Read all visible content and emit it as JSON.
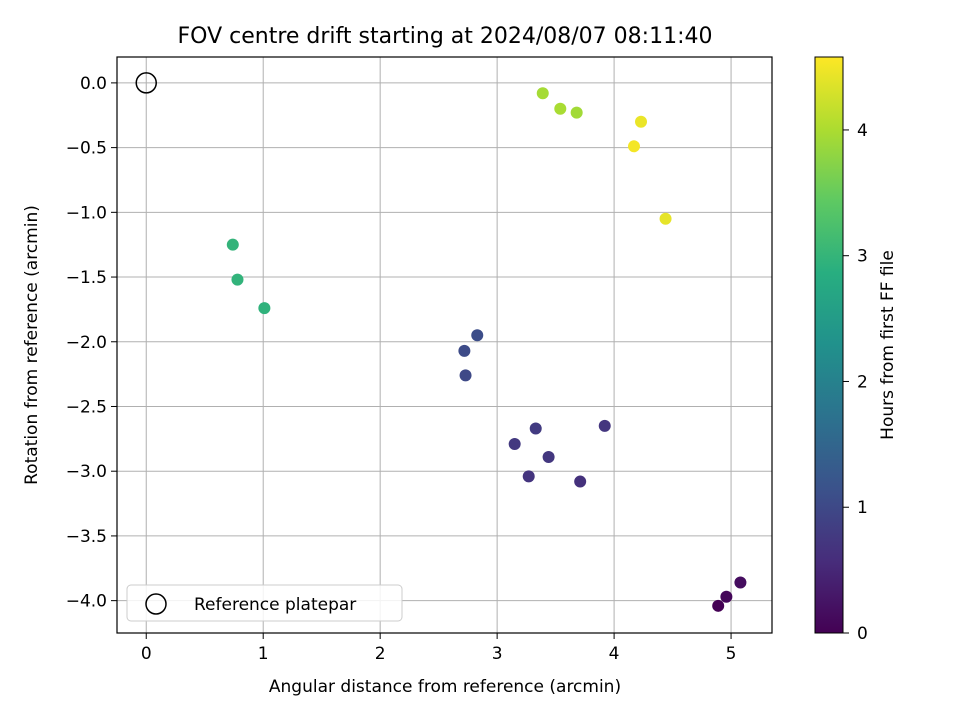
{
  "chart_data": {
    "type": "scatter",
    "title": "FOV centre drift starting at 2024/08/07 08:11:40",
    "xlabel": "Angular distance from reference (arcmin)",
    "ylabel": "Rotation from reference (arcmin)",
    "xlim": [
      -0.25,
      5.35
    ],
    "ylim": [
      -4.25,
      0.2
    ],
    "xticks": [
      0,
      1,
      2,
      3,
      4,
      5
    ],
    "xtick_labels": [
      "0",
      "1",
      "2",
      "3",
      "4",
      "5"
    ],
    "yticks": [
      0.0,
      -0.5,
      -1.0,
      -1.5,
      -2.0,
      -2.5,
      -3.0,
      -3.5,
      -4.0
    ],
    "ytick_labels": [
      "0.0",
      "−0.5",
      "−1.0",
      "−1.5",
      "−2.0",
      "−2.5",
      "−3.0",
      "−3.5",
      "−4.0"
    ],
    "grid": true,
    "legend": {
      "entries": [
        "Reference platepar"
      ],
      "placement": "lower-left"
    },
    "reference_point": {
      "x": 0.0,
      "y": 0.0,
      "marker": "open-circle",
      "label": "Reference platepar"
    },
    "colorbar": {
      "label": "Hours from first FF file",
      "range": [
        0,
        4.58
      ],
      "ticks": [
        0,
        1,
        2,
        3,
        4
      ],
      "tick_labels": [
        "0",
        "1",
        "2",
        "3",
        "4"
      ],
      "colormap": "viridis"
    },
    "points": [
      {
        "x": 4.89,
        "y": -4.04,
        "hours": 0.0
      },
      {
        "x": 4.96,
        "y": -3.97,
        "hours": 0.08
      },
      {
        "x": 5.08,
        "y": -3.86,
        "hours": 0.16
      },
      {
        "x": 3.71,
        "y": -3.08,
        "hours": 0.65
      },
      {
        "x": 3.27,
        "y": -3.04,
        "hours": 0.7
      },
      {
        "x": 3.44,
        "y": -2.89,
        "hours": 0.75
      },
      {
        "x": 3.15,
        "y": -2.79,
        "hours": 0.78
      },
      {
        "x": 3.33,
        "y": -2.67,
        "hours": 0.8
      },
      {
        "x": 3.92,
        "y": -2.65,
        "hours": 0.73
      },
      {
        "x": 2.73,
        "y": -2.26,
        "hours": 1.02
      },
      {
        "x": 2.72,
        "y": -2.07,
        "hours": 1.05
      },
      {
        "x": 2.83,
        "y": -1.95,
        "hours": 1.08
      },
      {
        "x": 0.74,
        "y": -1.25,
        "hours": 3.0
      },
      {
        "x": 0.78,
        "y": -1.52,
        "hours": 2.98
      },
      {
        "x": 1.01,
        "y": -1.74,
        "hours": 2.96
      },
      {
        "x": 3.39,
        "y": -0.08,
        "hours": 3.97
      },
      {
        "x": 3.54,
        "y": -0.2,
        "hours": 4.0
      },
      {
        "x": 3.68,
        "y": -0.23,
        "hours": 3.95
      },
      {
        "x": 4.23,
        "y": -0.3,
        "hours": 4.45
      },
      {
        "x": 4.17,
        "y": -0.49,
        "hours": 4.52
      },
      {
        "x": 4.44,
        "y": -1.05,
        "hours": 4.42
      }
    ]
  }
}
